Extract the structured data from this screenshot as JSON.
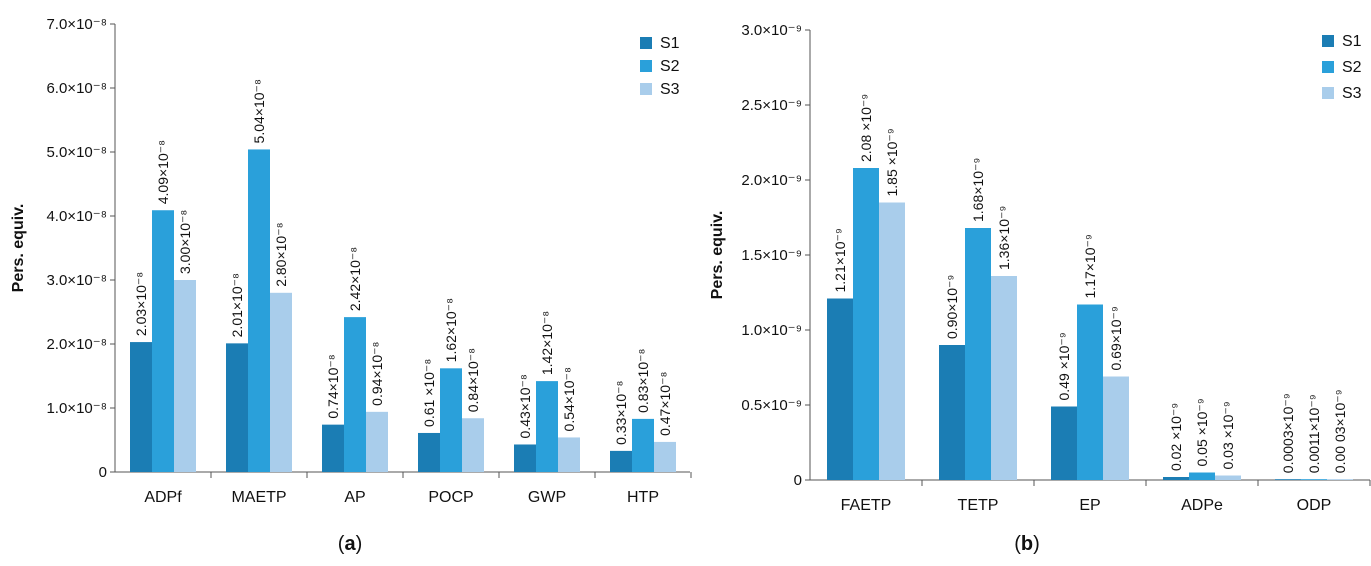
{
  "colors": {
    "S1": "#1b7db4",
    "S2": "#2aa0da",
    "S3": "#a9cdeb"
  },
  "chart_data": [
    {
      "type": "bar",
      "panel_label_open": "(",
      "panel_label": "a",
      "panel_label_close": ")",
      "ylabel": "Pers. equiv.",
      "ylim": [
        0,
        7e-08
      ],
      "yticks": [
        0,
        1e-08,
        2e-08,
        3e-08,
        4e-08,
        5e-08,
        6e-08,
        7e-08
      ],
      "ytick_labels": [
        "0",
        "1.0×10⁻⁸",
        "2.0×10⁻⁸",
        "3.0×10⁻⁸",
        "4.0×10⁻⁸",
        "5.0×10⁻⁸",
        "6.0×10⁻⁸",
        "7.0×10⁻⁸"
      ],
      "categories": [
        "ADPf",
        "MAETP",
        "AP",
        "POCP",
        "GWP",
        "HTP"
      ],
      "legend_position": "top-right",
      "series": [
        {
          "name": "S1",
          "values": [
            2.03e-08,
            2.01e-08,
            7.4e-09,
            6.1e-09,
            4.3e-09,
            3.3e-09
          ],
          "labels": [
            "2.03×10⁻⁸",
            "2.01×10⁻⁸",
            "0.74×10⁻⁸",
            "0.61 ×10⁻⁸",
            "0.43×10⁻⁸",
            "0.33×10⁻⁸"
          ]
        },
        {
          "name": "S2",
          "values": [
            4.09e-08,
            5.04e-08,
            2.42e-08,
            1.62e-08,
            1.42e-08,
            8.3e-09
          ],
          "labels": [
            "4.09×10⁻⁸",
            "5.04×10⁻⁸",
            "2.42×10⁻⁸",
            "1.62×10⁻⁸",
            "1.42×10⁻⁸",
            "0.83×10⁻⁸"
          ]
        },
        {
          "name": "S3",
          "values": [
            3e-08,
            2.8e-08,
            9.4e-09,
            8.4e-09,
            5.4e-09,
            4.7e-09
          ],
          "labels": [
            "3.00×10⁻⁸",
            "2.80×10⁻⁸",
            "0.94×10⁻⁸",
            "0.84×10⁻⁸",
            "0.54×10⁻⁸",
            "0.47×10⁻⁸"
          ]
        }
      ]
    },
    {
      "type": "bar",
      "panel_label_open": "(",
      "panel_label": "b",
      "panel_label_close": ")",
      "ylabel": "Pers. equiv.",
      "ylim": [
        0,
        3e-09
      ],
      "yticks": [
        0,
        5e-10,
        1e-09,
        1.5e-09,
        2e-09,
        2.5e-09,
        3e-09
      ],
      "ytick_labels": [
        "0",
        "0.5×10⁻⁹",
        "1.0×10⁻⁹",
        "1.5×10⁻⁹",
        "2.0×10⁻⁹",
        "2.5×10⁻⁹",
        "3.0×10⁻⁹"
      ],
      "categories": [
        "FAETP",
        "TETP",
        "EP",
        "ADPe",
        "ODP"
      ],
      "legend_position": "top-right",
      "series": [
        {
          "name": "S1",
          "values": [
            1.21e-09,
            9e-10,
            4.9e-10,
            2e-11,
            3e-13
          ],
          "labels": [
            "1.21×10⁻⁹",
            "0.90×10⁻⁹",
            "0.49 ×10⁻⁹",
            "0.02 ×10⁻⁹",
            "0.0003×10⁻⁹"
          ]
        },
        {
          "name": "S2",
          "values": [
            2.08e-09,
            1.68e-09,
            1.17e-09,
            5e-11,
            1.1e-12
          ],
          "labels": [
            "2.08 ×10⁻⁹",
            "1.68×10⁻⁹",
            "1.17×10⁻⁹",
            "0.05 ×10⁻⁹",
            "0.0011×10⁻⁹"
          ]
        },
        {
          "name": "S3",
          "values": [
            1.85e-09,
            1.36e-09,
            6.9e-10,
            3e-11,
            3e-13
          ],
          "labels": [
            "1.85 ×10⁻⁹",
            "1.36×10⁻⁹",
            "0.69×10⁻⁹",
            "0.03 ×10⁻⁹",
            "0.00 03×10⁻⁹"
          ]
        }
      ]
    }
  ]
}
